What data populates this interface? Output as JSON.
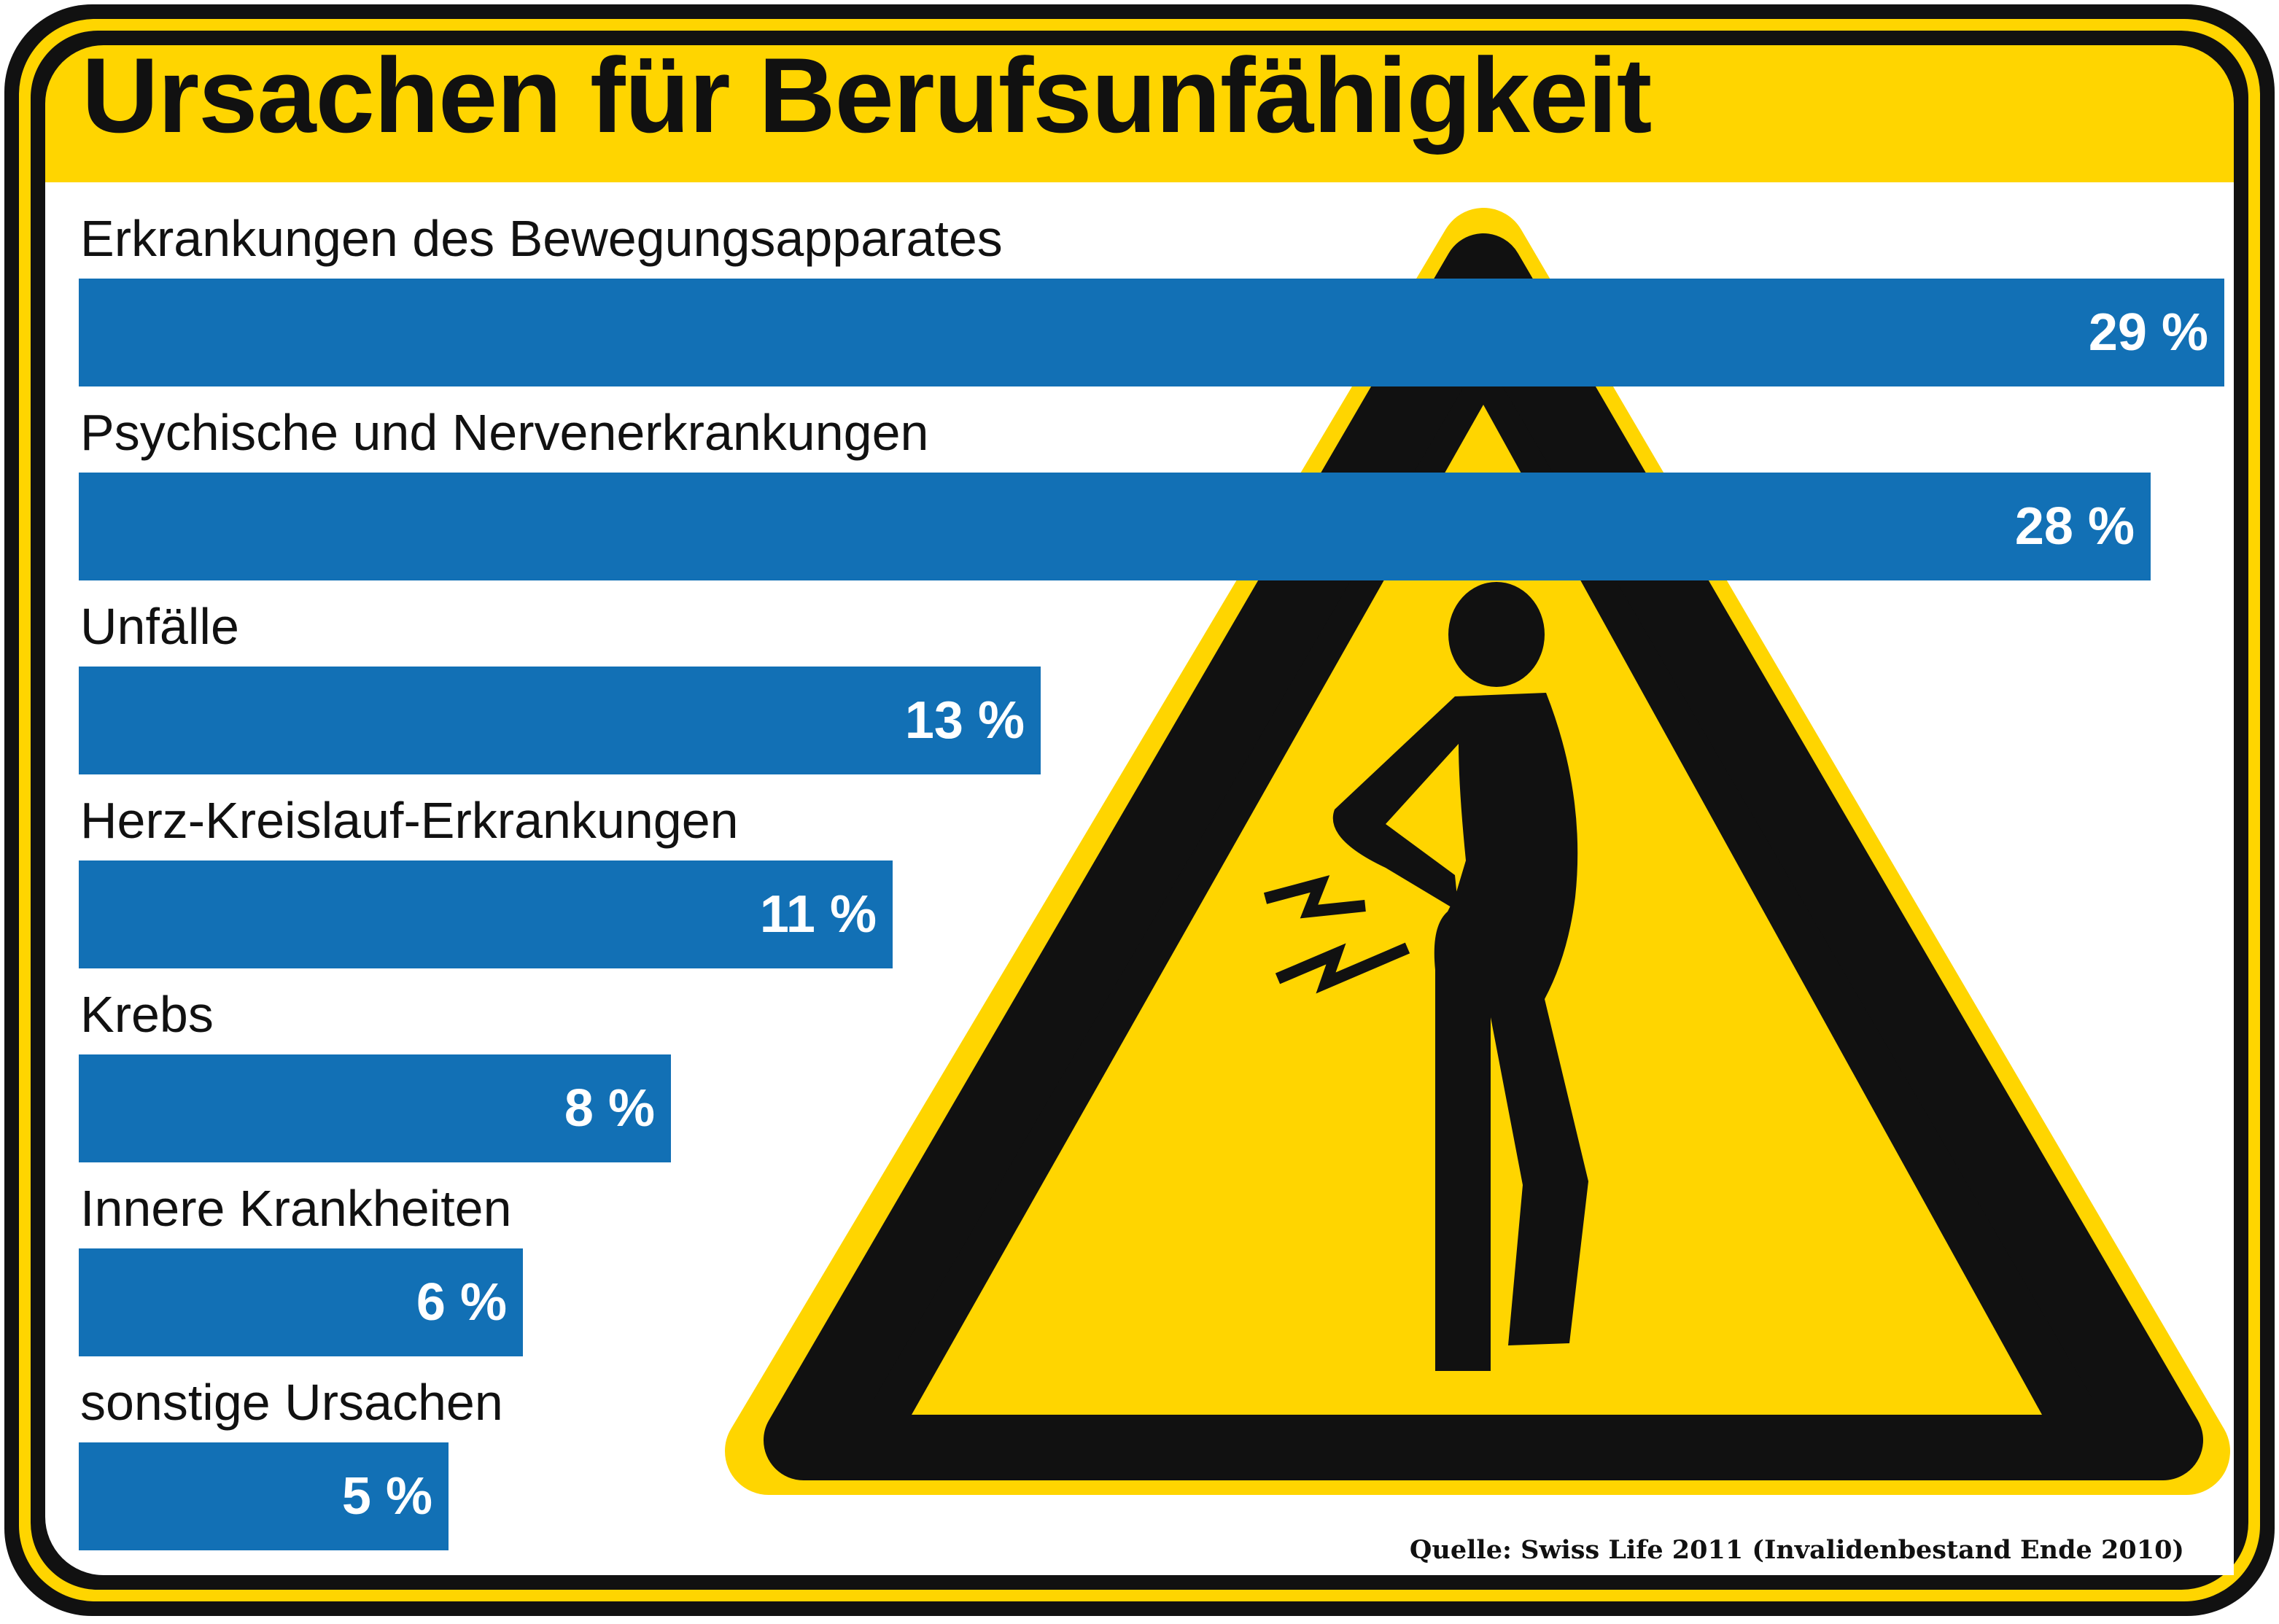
{
  "chart_data": {
    "type": "bar",
    "orientation": "horizontal",
    "title": "Ursachen für Berufsunfähigkeit",
    "categories": [
      "Erkrankungen des Bewegungsapparates",
      "Psychische und Nervenerkrankungen",
      "Unfälle",
      "Herz-Kreislauf-Erkrankungen",
      "Krebs",
      "Innere Krankheiten",
      "sonstige Ursachen"
    ],
    "values": [
      29,
      28,
      13,
      11,
      8,
      6,
      5
    ],
    "value_labels": [
      "29 %",
      "28 %",
      "13 %",
      "11 %",
      "8 %",
      "6 %",
      "5 %"
    ],
    "unit": "%",
    "xlim": [
      0,
      29
    ],
    "grid": false,
    "legend": "none"
  },
  "source": "Quelle: Swiss Life 2011 (Invalidenbestand Ende 2010)",
  "colors": {
    "frame_yellow": "#FFD500",
    "frame_black": "#111111",
    "bar_blue": "#1270B5",
    "background": "#FFFFFF",
    "label_text": "#111111",
    "value_text": "#FFFFFF"
  },
  "illustration": {
    "icon": "warning-triangle-back-pain-icon"
  }
}
